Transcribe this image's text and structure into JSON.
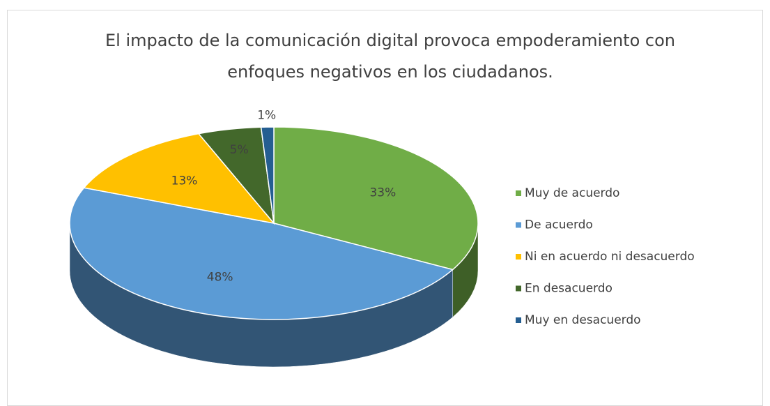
{
  "chart_data": {
    "type": "pie",
    "title": "El impacto de la comunicación digital provoca empoderamiento con enfoques negativos en los ciudadanos.",
    "categories": [
      "Muy de acuerdo",
      "De acuerdo",
      "Ni en acuerdo ni desacuerdo",
      "En desacuerdo",
      "Muy en desacuerdo"
    ],
    "values": [
      33,
      48,
      13,
      5,
      1
    ],
    "value_labels": [
      "33%",
      "48%",
      "13%",
      "5%",
      "1%"
    ],
    "colors": [
      "#70ad47",
      "#5b9bd5",
      "#ffc000",
      "#43682b",
      "#255e91"
    ],
    "legend": "right"
  }
}
